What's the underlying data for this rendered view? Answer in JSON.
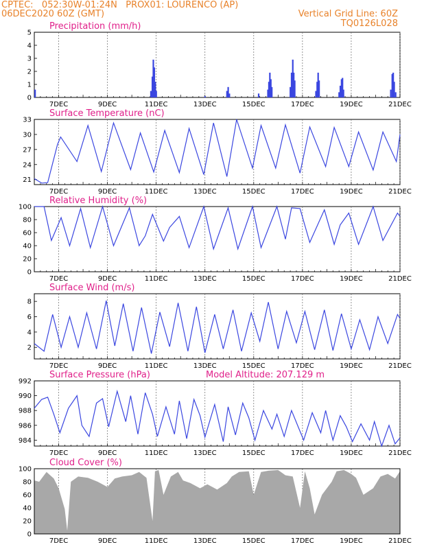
{
  "header": {
    "line1_left": "CPTEC:   052:30W-01:24N   PROX01: LOURENCO (AP)",
    "line2_left": "06DEC2020 60Z (GMT)",
    "line2_right": "Vertical Grid Line: 60Z",
    "line3_right": "TQ0126L028"
  },
  "colors": {
    "header": "#e8822a",
    "title": "#e0208a",
    "line": "#3a46e0",
    "bar": "#3a46e0",
    "cloud": "#a8a8a8"
  },
  "x_axis": {
    "start_day": 6.0,
    "end_day": 21.0,
    "tick_days": [
      7,
      9,
      11,
      13,
      15,
      17,
      19,
      21
    ],
    "tick_labels": [
      "7DEC",
      "9DEC",
      "11DEC",
      "13DEC",
      "15DEC",
      "17DEC",
      "19DEC",
      "21DEC"
    ]
  },
  "chart_data": [
    {
      "type": "bar",
      "title": "Precipitation (mm/h)",
      "ylim": [
        0,
        5
      ],
      "yticks": [
        0,
        1,
        2,
        3,
        4,
        5
      ],
      "bars": [
        {
          "day": 6.03,
          "value": 0.6
        },
        {
          "day": 10.78,
          "value": 0.5
        },
        {
          "day": 10.84,
          "value": 1.6
        },
        {
          "day": 10.88,
          "value": 2.9
        },
        {
          "day": 10.92,
          "value": 2.3
        },
        {
          "day": 10.96,
          "value": 1.2
        },
        {
          "day": 11.0,
          "value": 0.5
        },
        {
          "day": 13.0,
          "value": 0.1
        },
        {
          "day": 13.9,
          "value": 0.5
        },
        {
          "day": 13.95,
          "value": 0.8
        },
        {
          "day": 14.0,
          "value": 0.3
        },
        {
          "day": 15.2,
          "value": 0.3
        },
        {
          "day": 15.58,
          "value": 0.6
        },
        {
          "day": 15.62,
          "value": 1.2
        },
        {
          "day": 15.66,
          "value": 1.9
        },
        {
          "day": 15.7,
          "value": 1.4
        },
        {
          "day": 15.74,
          "value": 0.8
        },
        {
          "day": 16.5,
          "value": 0.8
        },
        {
          "day": 16.55,
          "value": 1.9
        },
        {
          "day": 16.6,
          "value": 2.9
        },
        {
          "day": 16.64,
          "value": 1.9
        },
        {
          "day": 16.68,
          "value": 1.3
        },
        {
          "day": 17.55,
          "value": 0.5
        },
        {
          "day": 17.6,
          "value": 1.2
        },
        {
          "day": 17.64,
          "value": 1.9
        },
        {
          "day": 17.68,
          "value": 1.3
        },
        {
          "day": 18.5,
          "value": 0.4
        },
        {
          "day": 18.55,
          "value": 0.9
        },
        {
          "day": 18.6,
          "value": 1.4
        },
        {
          "day": 18.64,
          "value": 1.5
        },
        {
          "day": 18.68,
          "value": 0.6
        },
        {
          "day": 20.62,
          "value": 0.6
        },
        {
          "day": 20.68,
          "value": 1.8
        },
        {
          "day": 20.72,
          "value": 1.9
        },
        {
          "day": 20.76,
          "value": 1.2
        },
        {
          "day": 20.82,
          "value": 0.4
        }
      ]
    },
    {
      "type": "line",
      "title": "Surface Temperature (nC)",
      "ylim": [
        20,
        33
      ],
      "yticks": [
        21,
        24,
        27,
        30,
        33
      ],
      "x": [
        6.0,
        6.3,
        6.55,
        6.95,
        7.08,
        7.75,
        8.2,
        8.75,
        9.25,
        9.95,
        10.35,
        10.9,
        11.35,
        11.95,
        12.35,
        12.95,
        13.35,
        13.9,
        14.3,
        14.95,
        15.3,
        15.9,
        16.3,
        16.9,
        17.3,
        17.95,
        18.3,
        18.9,
        19.3,
        19.9,
        20.3,
        20.85,
        21.0
      ],
      "values": [
        21.2,
        20.3,
        20.4,
        28.0,
        29.5,
        24.6,
        31.8,
        22.6,
        32.3,
        23.0,
        30.3,
        22.5,
        30.8,
        22.4,
        31.2,
        22.0,
        32.3,
        21.6,
        33.1,
        23.3,
        31.8,
        23.3,
        31.9,
        22.3,
        31.5,
        23.6,
        31.4,
        23.6,
        30.5,
        22.9,
        30.5,
        24.6,
        30.0
      ]
    },
    {
      "type": "line",
      "title": "Relative Humidity (%)",
      "ylim": [
        0,
        100
      ],
      "yticks": [
        0,
        20,
        40,
        60,
        80,
        100
      ],
      "x": [
        6.0,
        6.4,
        6.7,
        7.1,
        7.45,
        7.9,
        8.3,
        8.8,
        9.25,
        9.9,
        10.3,
        10.55,
        10.85,
        11.3,
        11.55,
        11.95,
        12.35,
        12.95,
        13.35,
        13.95,
        14.35,
        14.95,
        15.3,
        15.95,
        16.3,
        16.55,
        16.9,
        17.3,
        17.9,
        18.3,
        18.55,
        18.9,
        19.3,
        19.9,
        20.3,
        20.9,
        21.0
      ],
      "values": [
        100,
        100,
        48,
        83,
        40,
        97,
        37,
        100,
        40,
        98,
        40,
        55,
        88,
        47,
        68,
        85,
        37,
        100,
        35,
        98,
        35,
        100,
        37,
        100,
        50,
        98,
        97,
        45,
        95,
        42,
        72,
        90,
        42,
        100,
        48,
        90,
        85
      ]
    },
    {
      "type": "line",
      "title": "Surface Wind (m/s)",
      "ylim": [
        0.5,
        9
      ],
      "yticks": [
        2,
        4,
        6,
        8
      ],
      "x": [
        6.0,
        6.4,
        6.75,
        7.1,
        7.45,
        7.8,
        8.15,
        8.55,
        8.95,
        9.3,
        9.65,
        10.05,
        10.4,
        10.8,
        11.15,
        11.55,
        11.9,
        12.3,
        12.65,
        13.0,
        13.4,
        13.75,
        14.15,
        14.5,
        14.9,
        15.25,
        15.6,
        16.0,
        16.35,
        16.75,
        17.1,
        17.5,
        17.9,
        18.25,
        18.6,
        19.0,
        19.35,
        19.75,
        20.1,
        20.5,
        20.9,
        21.0
      ],
      "values": [
        2.5,
        1.5,
        6.3,
        2.0,
        6.0,
        2.0,
        6.5,
        1.8,
        8.1,
        2.2,
        7.7,
        1.5,
        7.2,
        1.2,
        6.6,
        2.1,
        7.8,
        1.5,
        7.3,
        1.3,
        6.3,
        1.8,
        6.9,
        1.5,
        6.5,
        2.8,
        7.9,
        1.8,
        6.7,
        2.6,
        6.7,
        1.7,
        6.9,
        1.6,
        6.4,
        1.8,
        5.6,
        1.7,
        6.0,
        2.5,
        6.3,
        5.8
      ]
    },
    {
      "type": "line",
      "title": "Surface Pressure (hPa)",
      "annotation": "Model Altitude: 207.129 m",
      "ylim": [
        983.2,
        992
      ],
      "yticks": [
        984,
        986,
        988,
        990,
        992
      ],
      "x": [
        6.0,
        6.3,
        6.55,
        6.8,
        7.05,
        7.4,
        7.75,
        7.95,
        8.25,
        8.55,
        8.8,
        9.05,
        9.4,
        9.75,
        9.95,
        10.25,
        10.55,
        10.85,
        11.05,
        11.4,
        11.75,
        11.95,
        12.25,
        12.55,
        12.8,
        13.0,
        13.4,
        13.75,
        13.95,
        14.25,
        14.55,
        14.8,
        15.05,
        15.4,
        15.75,
        15.95,
        16.25,
        16.55,
        16.85,
        17.05,
        17.4,
        17.75,
        17.95,
        18.25,
        18.55,
        18.8,
        19.05,
        19.4,
        19.75,
        19.95,
        20.25,
        20.55,
        20.8,
        21.0
      ],
      "values": [
        988.3,
        989.5,
        989.8,
        987.5,
        985.0,
        988.3,
        990.0,
        986.0,
        984.5,
        989.0,
        989.6,
        985.8,
        990.6,
        986.5,
        990.0,
        984.8,
        990.4,
        987.5,
        984.5,
        988.5,
        984.8,
        989.3,
        984.2,
        989.5,
        987.3,
        984.4,
        988.8,
        983.8,
        988.5,
        984.7,
        989.0,
        987.0,
        984.0,
        988.0,
        985.5,
        987.5,
        984.5,
        988.0,
        985.6,
        984.0,
        987.7,
        985.0,
        988.0,
        984.0,
        987.3,
        985.8,
        983.8,
        986.2,
        984.0,
        986.5,
        983.0,
        986.0,
        983.5,
        984.3
      ]
    },
    {
      "type": "area",
      "title": "Cloud Cover (%)",
      "ylim": [
        0,
        100
      ],
      "yticks": [
        0,
        20,
        40,
        60,
        80,
        100
      ],
      "x": [
        6.0,
        6.2,
        6.5,
        6.8,
        7.0,
        7.25,
        7.35,
        7.5,
        7.8,
        8.2,
        8.6,
        9.0,
        9.3,
        9.6,
        10.0,
        10.3,
        10.6,
        10.85,
        10.95,
        11.1,
        11.3,
        11.6,
        11.9,
        12.1,
        12.4,
        12.8,
        13.1,
        13.5,
        13.9,
        14.1,
        14.4,
        14.8,
        15.0,
        15.3,
        15.6,
        16.0,
        16.3,
        16.6,
        16.9,
        17.1,
        17.3,
        17.5,
        17.8,
        18.2,
        18.4,
        18.7,
        19.0,
        19.2,
        19.5,
        19.9,
        20.2,
        20.5,
        20.8,
        21.0
      ],
      "values": [
        82,
        80,
        95,
        85,
        70,
        38,
        5,
        80,
        88,
        86,
        80,
        72,
        85,
        88,
        90,
        95,
        86,
        20,
        96,
        98,
        60,
        88,
        95,
        82,
        78,
        70,
        76,
        68,
        78,
        88,
        95,
        96,
        60,
        95,
        97,
        98,
        90,
        88,
        40,
        96,
        70,
        30,
        60,
        80,
        96,
        98,
        92,
        86,
        60,
        70,
        88,
        92,
        85,
        96
      ]
    }
  ]
}
